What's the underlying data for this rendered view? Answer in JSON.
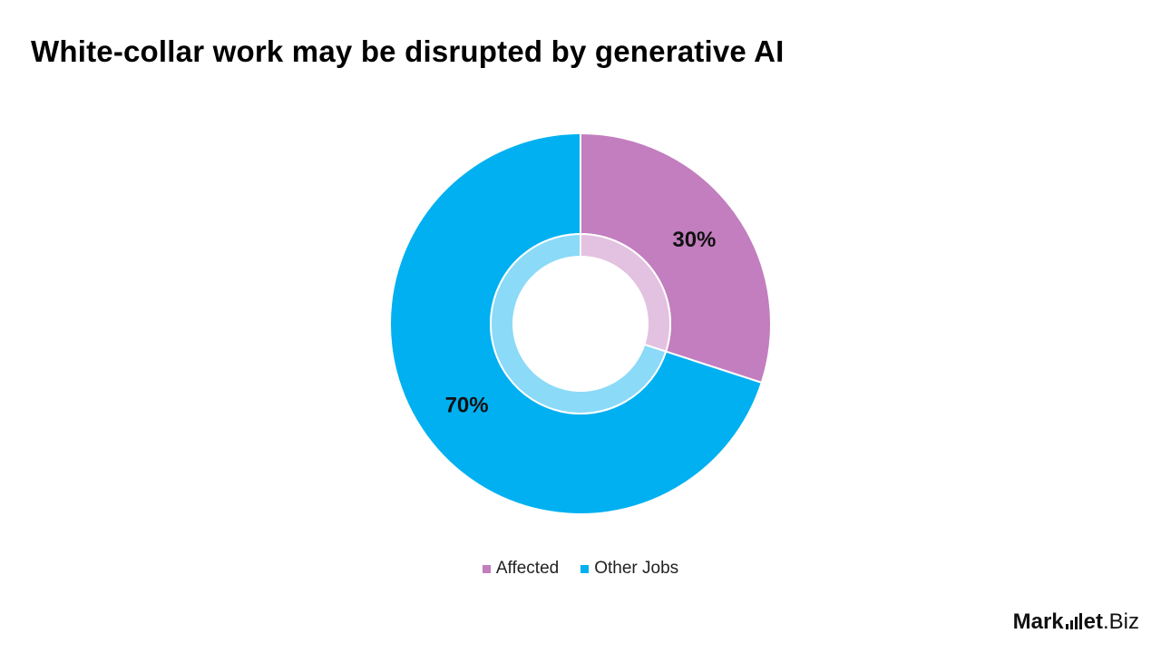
{
  "chart_data": {
    "type": "pie",
    "title": "White-collar work may be disrupted by generative AI",
    "slices": [
      {
        "name": "Affected",
        "value": 30,
        "label": "30%",
        "color": "#C27EBE",
        "inner_color": "#E3C1E0"
      },
      {
        "name": "Other Jobs",
        "value": 70,
        "label": "70%",
        "color": "#00B0F0",
        "inner_color": "#8ADAF8"
      }
    ],
    "legend_position": "bottom",
    "donut": true
  },
  "brand": {
    "name_left": "Mark",
    "name_mid": "et",
    "name_right": ".Biz"
  }
}
